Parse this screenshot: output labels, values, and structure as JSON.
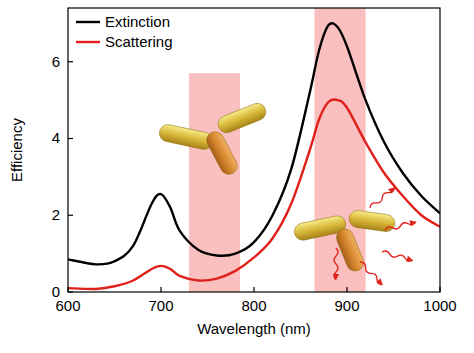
{
  "chart_data": {
    "type": "line",
    "x_label": "Wavelength (nm)",
    "y_label": "Efficiency",
    "x": [
      600,
      630,
      650,
      670,
      690,
      700,
      710,
      720,
      740,
      760,
      780,
      800,
      820,
      840,
      860,
      870,
      880,
      890,
      900,
      920,
      940,
      960,
      980,
      1000
    ],
    "series": [
      {
        "name": "Extinction",
        "color": "#000000",
        "values": [
          0.85,
          0.72,
          0.8,
          1.2,
          2.3,
          2.55,
          2.2,
          1.6,
          1.1,
          0.95,
          1.0,
          1.3,
          2.0,
          3.2,
          5.2,
          6.3,
          6.95,
          6.9,
          6.4,
          5.0,
          3.9,
          3.1,
          2.5,
          2.05
        ]
      },
      {
        "name": "Scattering",
        "color": "#e0201a",
        "values": [
          0.1,
          0.08,
          0.15,
          0.3,
          0.6,
          0.68,
          0.6,
          0.42,
          0.3,
          0.35,
          0.55,
          0.9,
          1.4,
          2.3,
          3.7,
          4.5,
          4.95,
          5.0,
          4.8,
          3.9,
          3.1,
          2.5,
          2.0,
          1.7
        ]
      }
    ],
    "shaded_regions": [
      {
        "x": [
          730,
          785
        ],
        "y": [
          0,
          5.7
        ]
      },
      {
        "x": [
          865,
          920
        ],
        "y": [
          0,
          7.4
        ]
      }
    ],
    "xlim": [
      600,
      1000
    ],
    "ylim": [
      0,
      7.4
    ],
    "xticks": [
      600,
      700,
      800,
      900,
      1000
    ],
    "yticks": [
      0,
      2,
      4,
      6
    ],
    "grid": false,
    "legend": "upper left"
  }
}
